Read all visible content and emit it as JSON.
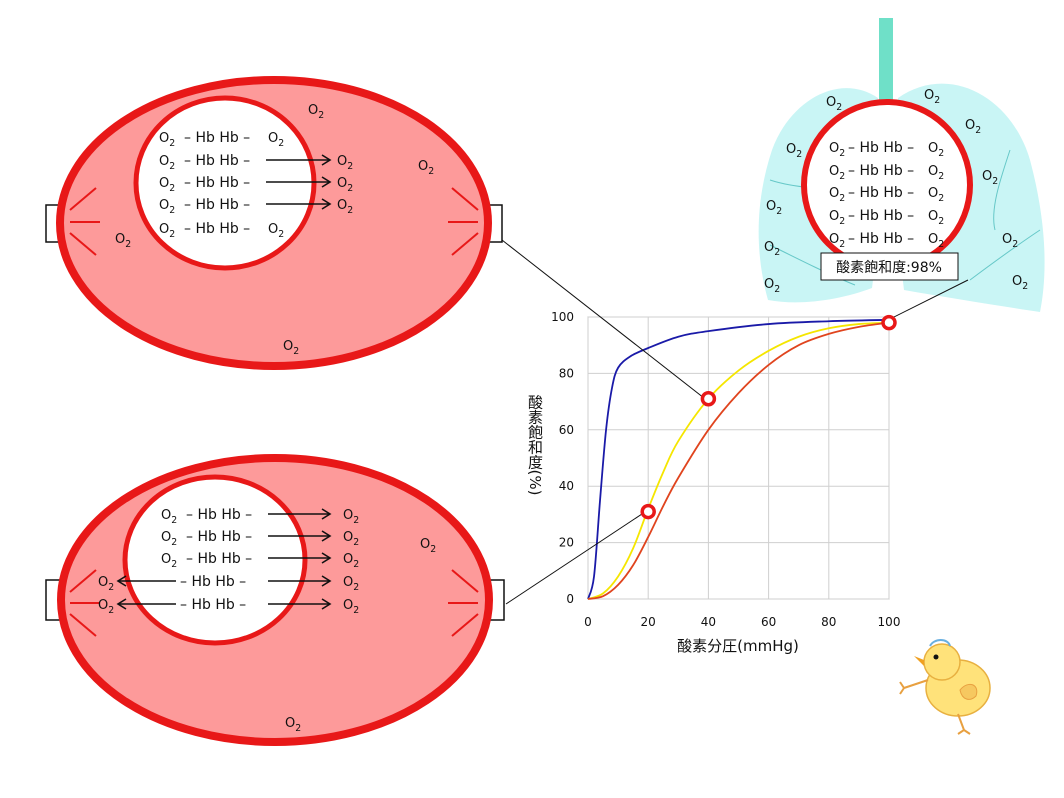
{
  "molecules": {
    "o2": "O",
    "o2_sub": "2",
    "hb_pair": "Hb Hb",
    "hb_single": "Hb Hb",
    "dash": "–"
  },
  "lung": {
    "saturation_label": "酸素飽和度:98%"
  },
  "chart_data": {
    "type": "line",
    "xlabel": "酸素分圧(mmHg)",
    "ylabel": "酸素飽和度(%)",
    "xlim": [
      0,
      100
    ],
    "ylim": [
      0,
      100
    ],
    "x_ticks": [
      "0",
      "20",
      "40",
      "60",
      "80",
      "100"
    ],
    "y_ticks": [
      "0",
      "20",
      "40",
      "60",
      "80",
      "100"
    ],
    "grid": true,
    "series": [
      {
        "color": "#1a1aa8",
        "x": [
          0,
          2,
          4,
          6,
          8,
          10,
          14,
          20,
          30,
          40,
          60,
          80,
          100
        ],
        "y": [
          0,
          8,
          35,
          60,
          75,
          82,
          86,
          89,
          93,
          95,
          97.5,
          98.5,
          99
        ]
      },
      {
        "color": "#f5e600",
        "x": [
          0,
          5,
          10,
          15,
          20,
          25,
          30,
          40,
          50,
          60,
          70,
          80,
          90,
          100
        ],
        "y": [
          0,
          2,
          8,
          18,
          32,
          45,
          56,
          71,
          81,
          88,
          93,
          96,
          97.5,
          98
        ]
      },
      {
        "color": "#e0441e",
        "x": [
          0,
          5,
          10,
          15,
          20,
          25,
          30,
          40,
          50,
          60,
          70,
          80,
          90,
          100
        ],
        "y": [
          0,
          1,
          5,
          12,
          22,
          33,
          43,
          60,
          73,
          83,
          90,
          94,
          96.5,
          98
        ]
      }
    ],
    "highlights": [
      {
        "x": 20,
        "y": 31
      },
      {
        "x": 40,
        "y": 71
      },
      {
        "x": 100,
        "y": 98
      }
    ]
  }
}
